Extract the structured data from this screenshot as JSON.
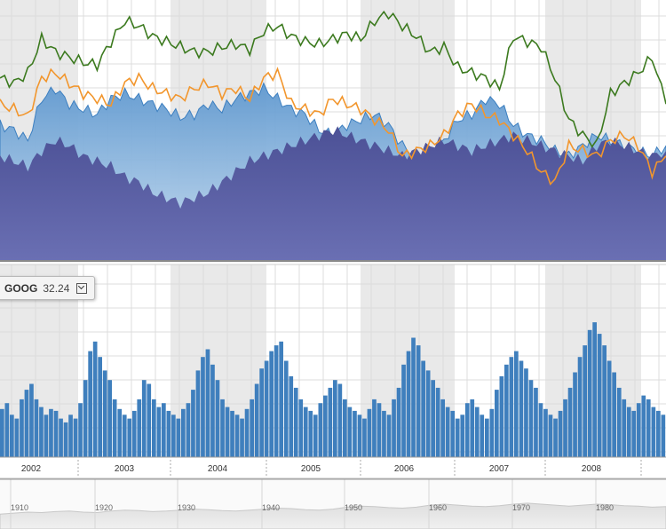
{
  "colors": {
    "green_line": "#3c7a1f",
    "orange_line": "#f2962d",
    "light_area": "#7fb0dc",
    "dark_area": "#5a5fa4",
    "pink_area": "#9a6aa8",
    "volume_bar": "#3f7fbd",
    "band": "#e9e9e9",
    "grid": "#dcdcdc"
  },
  "legend": {
    "symbol": "GOOG",
    "value": "32.24"
  },
  "chart_data": [
    {
      "type": "area",
      "title": "",
      "description": "price comparison panel",
      "x_start": 2001.0,
      "x_end": 2008.5,
      "ylim": [
        0,
        100
      ],
      "series": [
        {
          "style": "line",
          "color_key": "green_line",
          "values": [
            70,
            68,
            72,
            85,
            80,
            78,
            76,
            75,
            84,
            92,
            90,
            86,
            84,
            82,
            80,
            80,
            82,
            83,
            81,
            88,
            90,
            86,
            84,
            83,
            85,
            87,
            85,
            92,
            95,
            90,
            86,
            80,
            82,
            74,
            72,
            70,
            66,
            86,
            84,
            82,
            70,
            54,
            48,
            44,
            64,
            68,
            72,
            78,
            60
          ]
        },
        {
          "style": "line",
          "color_key": "orange_line",
          "values": [
            60,
            58,
            55,
            70,
            72,
            68,
            64,
            62,
            60,
            68,
            70,
            66,
            64,
            62,
            66,
            68,
            64,
            66,
            62,
            70,
            72,
            60,
            58,
            56,
            62,
            60,
            58,
            54,
            50,
            40,
            42,
            44,
            48,
            56,
            60,
            56,
            54,
            48,
            42,
            34,
            30,
            44,
            42,
            40,
            46,
            48,
            44,
            34,
            40
          ]
        },
        {
          "style": "area",
          "color_key": "light_area",
          "values": [
            52,
            50,
            46,
            62,
            66,
            60,
            58,
            56,
            62,
            64,
            62,
            60,
            58,
            55,
            56,
            60,
            58,
            62,
            64,
            66,
            62,
            58,
            56,
            50,
            48,
            52,
            54,
            56,
            52,
            44,
            40,
            38,
            46,
            54,
            56,
            62,
            60,
            52,
            48,
            46,
            42,
            40,
            44,
            48,
            46,
            44,
            42,
            40,
            44
          ]
        },
        {
          "style": "area",
          "color_key": "dark_area",
          "values": [
            40,
            38,
            36,
            42,
            46,
            44,
            40,
            38,
            36,
            32,
            30,
            26,
            24,
            22,
            24,
            26,
            30,
            34,
            38,
            40,
            42,
            44,
            46,
            48,
            50,
            48,
            46,
            44,
            42,
            40,
            42,
            44,
            46,
            44,
            42,
            44,
            46,
            48,
            46,
            44,
            42,
            40,
            38,
            44,
            46,
            44,
            42,
            40,
            42
          ]
        }
      ]
    },
    {
      "type": "bar",
      "title": "",
      "description": "volume panel",
      "x_start": 2001.0,
      "x_end": 2008.5,
      "ylim": [
        0,
        100
      ],
      "tick_labels": [
        "2002",
        "2003",
        "2004",
        "2005",
        "2006",
        "2007",
        "2008"
      ],
      "values": [
        25,
        28,
        22,
        20,
        30,
        35,
        38,
        30,
        26,
        22,
        25,
        24,
        20,
        18,
        22,
        20,
        28,
        40,
        55,
        60,
        52,
        45,
        40,
        30,
        25,
        22,
        20,
        24,
        30,
        40,
        38,
        30,
        26,
        28,
        24,
        22,
        20,
        25,
        28,
        35,
        45,
        52,
        56,
        48,
        40,
        30,
        26,
        24,
        22,
        20,
        25,
        30,
        38,
        46,
        50,
        55,
        58,
        60,
        50,
        42,
        36,
        30,
        26,
        24,
        22,
        28,
        32,
        36,
        40,
        38,
        30,
        26,
        24,
        22,
        20,
        25,
        30,
        28,
        24,
        22,
        30,
        36,
        48,
        55,
        62,
        58,
        50,
        45,
        40,
        36,
        30,
        26,
        24,
        20,
        22,
        28,
        30,
        26,
        22,
        20,
        25,
        35,
        42,
        48,
        52,
        55,
        50,
        46,
        40,
        36,
        28,
        25,
        22,
        20,
        24,
        30,
        36,
        44,
        52,
        58,
        66,
        70,
        64,
        58,
        50,
        44,
        36,
        30,
        26,
        24,
        28,
        32,
        30,
        26,
        24,
        22
      ]
    },
    {
      "type": "area",
      "title": "",
      "description": "navigator panel",
      "tick_labels": [
        "1910",
        "1920",
        "1930",
        "1940",
        "1950",
        "1960",
        "1970",
        "1980"
      ],
      "values": [
        30,
        32,
        34,
        33,
        35,
        36,
        34,
        33,
        36,
        38,
        37,
        35,
        36,
        38,
        40,
        39,
        37,
        36,
        38,
        40,
        42,
        41,
        39,
        38,
        40,
        44,
        46,
        45,
        43,
        42,
        44,
        48,
        50,
        48,
        46,
        45,
        47,
        50,
        52,
        50,
        48,
        46,
        48,
        50,
        49,
        47,
        46,
        44,
        45
      ]
    }
  ]
}
